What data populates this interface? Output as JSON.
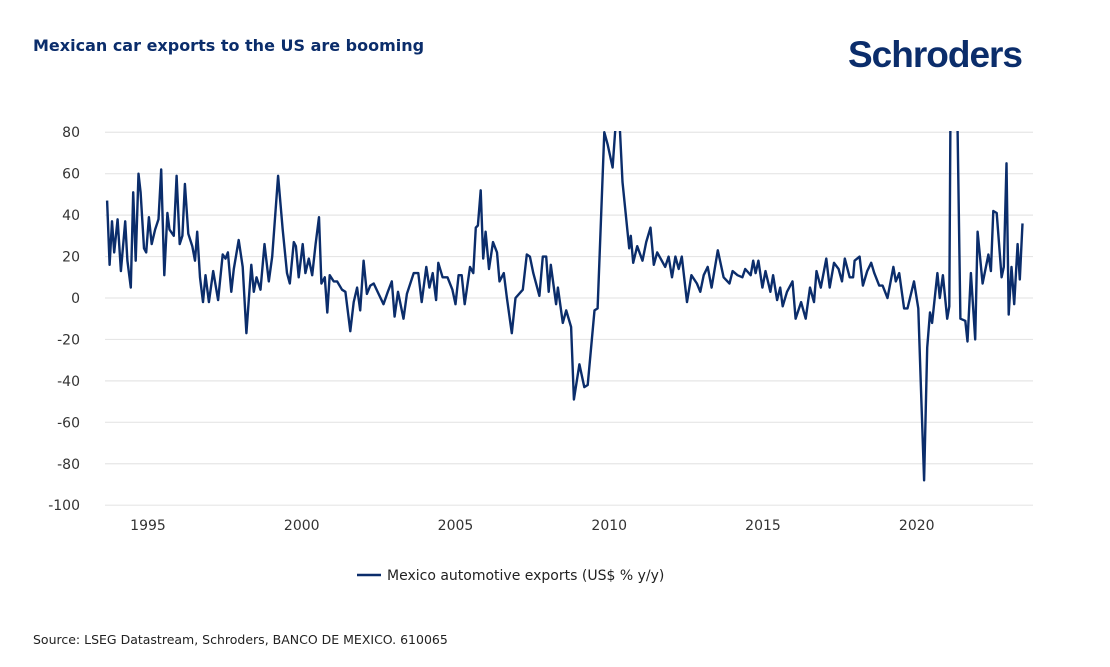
{
  "header": {
    "title": "Mexican car exports to the US are booming",
    "logo": "Schroders"
  },
  "footer": {
    "source": "Source: LSEG Datastream, Schroders, BANCO DE MEXICO. 610065"
  },
  "colors": {
    "series": "#0b2d6b",
    "grid": "#e6e6e6",
    "title": "#0b2d6b"
  },
  "chart_data": {
    "type": "line",
    "title": "Mexican car exports to the US are booming",
    "xlabel": "",
    "ylabel": "",
    "ylim": [
      -100,
      80
    ],
    "xlim": [
      1993.5,
      2023.7
    ],
    "grid": true,
    "legend_position": "bottom-center",
    "yticks": [
      "80",
      "60",
      "40",
      "20",
      "0",
      "-20",
      "-40",
      "-60",
      "-80",
      "-100"
    ],
    "ytick_values": [
      80,
      60,
      40,
      20,
      0,
      -20,
      -40,
      -60,
      -80,
      -100
    ],
    "xticks": [
      "1995",
      "2000",
      "2005",
      "2010",
      "2015",
      "2020"
    ],
    "xtick_values": [
      1995,
      2000,
      2005,
      2010,
      2015,
      2020
    ],
    "series": [
      {
        "name": "Mexico automotive exports (US$ % y/y)",
        "x": [
          1993.67,
          1993.75,
          1993.83,
          1993.9,
          1994.01,
          1994.12,
          1994.26,
          1994.33,
          1994.44,
          1994.52,
          1994.6,
          1994.69,
          1994.76,
          1994.87,
          1994.94,
          1995.03,
          1995.12,
          1995.23,
          1995.34,
          1995.43,
          1995.53,
          1995.63,
          1995.7,
          1995.84,
          1995.93,
          1996.03,
          1996.12,
          1996.2,
          1996.31,
          1996.44,
          1996.53,
          1996.6,
          1996.69,
          1996.79,
          1996.87,
          1996.98,
          1997.12,
          1997.28,
          1997.43,
          1997.52,
          1997.6,
          1997.71,
          1997.79,
          1997.95,
          1998.08,
          1998.2,
          1998.36,
          1998.44,
          1998.53,
          1998.66,
          1998.79,
          1998.93,
          1999.04,
          1999.23,
          1999.38,
          1999.52,
          1999.61,
          1999.74,
          1999.81,
          1999.9,
          2000.03,
          2000.12,
          2000.23,
          2000.34,
          2000.45,
          2000.56,
          2000.64,
          2000.75,
          2000.83,
          2000.91,
          2001.04,
          2001.15,
          2001.31,
          2001.42,
          2001.58,
          2001.69,
          2001.8,
          2001.9,
          2002.01,
          2002.12,
          2002.23,
          2002.34,
          2002.5,
          2002.66,
          2002.8,
          2002.93,
          2003.02,
          2003.13,
          2003.31,
          2003.42,
          2003.64,
          2003.79,
          2003.9,
          2004.05,
          2004.15,
          2004.26,
          2004.37,
          2004.44,
          2004.58,
          2004.74,
          2004.9,
          2005.0,
          2005.1,
          2005.2,
          2005.3,
          2005.47,
          2005.58,
          2005.66,
          2005.73,
          2005.82,
          2005.9,
          2005.98,
          2006.09,
          2006.22,
          2006.35,
          2006.43,
          2006.57,
          2006.67,
          2006.83,
          2006.95,
          2007.19,
          2007.32,
          2007.42,
          2007.53,
          2007.73,
          2007.84,
          2007.95,
          2008.03,
          2008.1,
          2008.27,
          2008.33,
          2008.49,
          2008.6,
          2008.76,
          2008.85,
          2009.03,
          2009.19,
          2009.3,
          2009.52,
          2009.62,
          2009.84,
          2009.95,
          2010.11,
          2010.19,
          2010.3,
          2010.43,
          2010.65,
          2010.7,
          2010.78,
          2010.91,
          2011.08,
          2011.2,
          2011.34,
          2011.45,
          2011.56,
          2011.82,
          2011.93,
          2012.04,
          2012.15,
          2012.26,
          2012.36,
          2012.53,
          2012.67,
          2012.85,
          2012.96,
          2013.07,
          2013.2,
          2013.33,
          2013.53,
          2013.72,
          2013.91,
          2014.01,
          2014.17,
          2014.33,
          2014.42,
          2014.6,
          2014.68,
          2014.76,
          2014.85,
          2014.98,
          2015.08,
          2015.24,
          2015.33,
          2015.46,
          2015.56,
          2015.64,
          2015.78,
          2015.96,
          2016.06,
          2016.24,
          2016.39,
          2016.53,
          2016.66,
          2016.74,
          2016.88,
          2017.06,
          2017.17,
          2017.31,
          2017.46,
          2017.57,
          2017.66,
          2017.82,
          2017.93,
          2017.98,
          2018.14,
          2018.25,
          2018.39,
          2018.52,
          2018.62,
          2018.78,
          2018.89,
          2019.05,
          2019.24,
          2019.32,
          2019.43,
          2019.59,
          2019.7,
          2019.91,
          2020.05,
          2020.13,
          2020.24,
          2020.34,
          2020.43,
          2020.5,
          2020.67,
          2020.75,
          2020.85,
          2020.99,
          2021.06,
          2021.1,
          2021.31,
          2021.42,
          2021.58,
          2021.65,
          2021.76,
          2021.9,
          2021.98,
          2022.14,
          2022.33,
          2022.41,
          2022.49,
          2022.6,
          2022.76,
          2022.83,
          2022.92,
          2022.99,
          2023.08,
          2023.17,
          2023.28,
          2023.35,
          2023.44
        ],
        "y": [
          47,
          16,
          37,
          22,
          38,
          13,
          37,
          18,
          5,
          51,
          18,
          60,
          51,
          24,
          22,
          39,
          26,
          33,
          38,
          62,
          11,
          41,
          33,
          30,
          59,
          26,
          30,
          55,
          31,
          25,
          18,
          32,
          10,
          -2,
          11,
          -2,
          13,
          -1,
          21,
          19,
          22,
          3,
          14,
          28,
          15,
          -17,
          16,
          3,
          10,
          4,
          26,
          8,
          20,
          59,
          33,
          12,
          7,
          27,
          25,
          10,
          26,
          12,
          19,
          11,
          26,
          39,
          7,
          10,
          -7,
          11,
          8,
          8,
          4,
          3,
          -16,
          -2,
          5,
          -6,
          18,
          2,
          6,
          7,
          2,
          -3,
          3,
          8,
          -9,
          3,
          -10,
          2,
          12,
          12,
          -2,
          15,
          5,
          12,
          -1,
          17,
          10,
          10,
          4,
          -3,
          11,
          11,
          -3,
          15,
          12,
          34,
          35,
          52,
          19,
          32,
          14,
          27,
          22,
          8,
          12,
          0,
          -17,
          0,
          4,
          21,
          20,
          12,
          1,
          20,
          20,
          3,
          16,
          -3,
          5,
          -12,
          -6,
          -14,
          -49,
          -32,
          -43,
          -42,
          -6,
          -5,
          80,
          74,
          63,
          80,
          95,
          56,
          24,
          30,
          17,
          25,
          18,
          27,
          34,
          16,
          22,
          15,
          20,
          10,
          20,
          14,
          20,
          -2,
          11,
          7,
          3,
          11,
          15,
          5,
          23,
          10,
          7,
          13,
          11,
          10,
          14,
          11,
          18,
          12,
          18,
          5,
          13,
          3,
          11,
          -1,
          5,
          -4,
          3,
          8,
          -10,
          -2,
          -10,
          5,
          -2,
          13,
          5,
          19,
          5,
          17,
          14,
          8,
          19,
          10,
          10,
          18,
          20,
          6,
          13,
          17,
          12,
          6,
          6,
          0,
          15,
          8,
          12,
          -5,
          -5,
          8,
          -5,
          -40,
          -88,
          -24,
          -7,
          -12,
          12,
          0,
          11,
          -10,
          -4,
          100,
          100,
          -10,
          -11,
          -21,
          12,
          -20,
          32,
          7,
          21,
          13,
          42,
          41,
          10,
          15,
          65,
          -8,
          15,
          -3,
          26,
          9,
          36
        ]
      }
    ]
  }
}
